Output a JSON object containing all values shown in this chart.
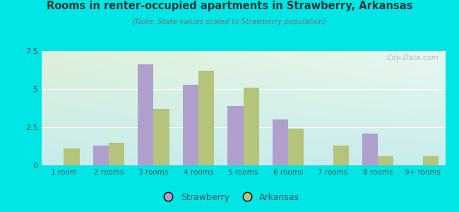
{
  "title": "Rooms in renter-occupied apartments in Strawberry, Arkansas",
  "subtitle": "(Note: State values scaled to Strawberry population)",
  "categories": [
    "1 room",
    "2 rooms",
    "3 rooms",
    "4 rooms",
    "5 rooms",
    "6 rooms",
    "7 rooms",
    "8 rooms",
    "9+ rooms"
  ],
  "strawberry_values": [
    0,
    1.3,
    6.6,
    5.3,
    3.9,
    3.0,
    0,
    2.1,
    0
  ],
  "arkansas_values": [
    1.1,
    1.5,
    3.7,
    6.2,
    5.1,
    2.4,
    1.3,
    0.6,
    0.6
  ],
  "strawberry_color": "#b09fcc",
  "arkansas_color": "#b5c47a",
  "ylim": [
    0,
    7.5
  ],
  "yticks": [
    0,
    2.5,
    5,
    7.5
  ],
  "background_color": "#00e5e5",
  "plot_bg_top_left": "#ddf0d8",
  "plot_bg_top_right": "#e8f8f0",
  "plot_bg_bottom": "#c8ecec",
  "title_color": "#333333",
  "subtitle_color": "#777777",
  "tick_color": "#555555",
  "watermark": "City-Data.com",
  "legend_strawberry": "Strawberry",
  "legend_arkansas": "Arkansas",
  "bar_width": 0.35
}
